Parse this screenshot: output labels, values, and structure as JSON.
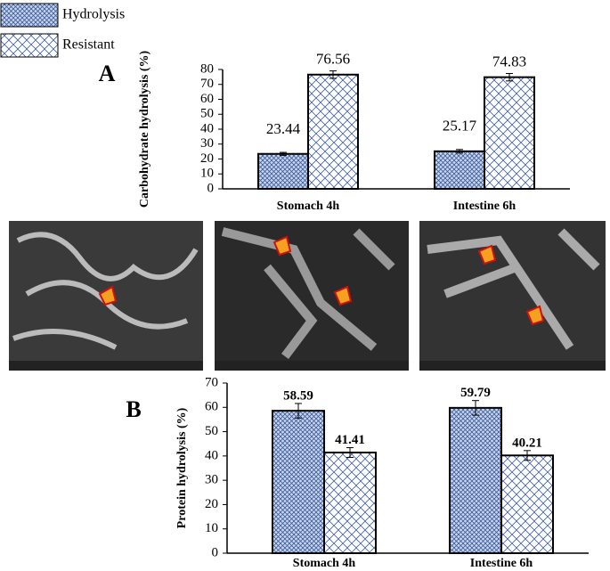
{
  "chart_data": [
    {
      "type": "bar",
      "panel_label": "A",
      "ylabel": "Carbohydrate hydrolysis (%)",
      "categories": [
        "Stomach 4h",
        "Intestine 6h"
      ],
      "series": [
        {
          "name": "Hydrolysis",
          "color": "#3a5a9c",
          "values": [
            23.44,
            25.17
          ],
          "errors": [
            1,
            1.2
          ]
        },
        {
          "name": "Resistant",
          "color": "#3a5a9c",
          "values": [
            76.56,
            74.83
          ],
          "errors": [
            2.5,
            2.5
          ]
        }
      ],
      "ylim": [
        0,
        80
      ],
      "yticks": [
        0,
        10,
        20,
        30,
        40,
        50,
        60,
        70,
        80
      ],
      "legend": "top-left"
    },
    {
      "type": "bar",
      "panel_label": "B",
      "ylabel": "Protein hydrolysis (%)",
      "categories": [
        "Stomach 4h",
        "Intestine 6h"
      ],
      "series": [
        {
          "name": "Hydrolysis",
          "color": "#3a5a9c",
          "values": [
            58.59,
            59.79
          ],
          "errors": [
            3,
            3
          ]
        },
        {
          "name": "Resistant",
          "color": "#3a5a9c",
          "values": [
            41.41,
            40.21
          ],
          "errors": [
            2,
            2
          ]
        }
      ],
      "ylim": [
        0,
        70
      ],
      "yticks": [
        0,
        10,
        20,
        30,
        40,
        50,
        60,
        70
      ]
    }
  ]
}
